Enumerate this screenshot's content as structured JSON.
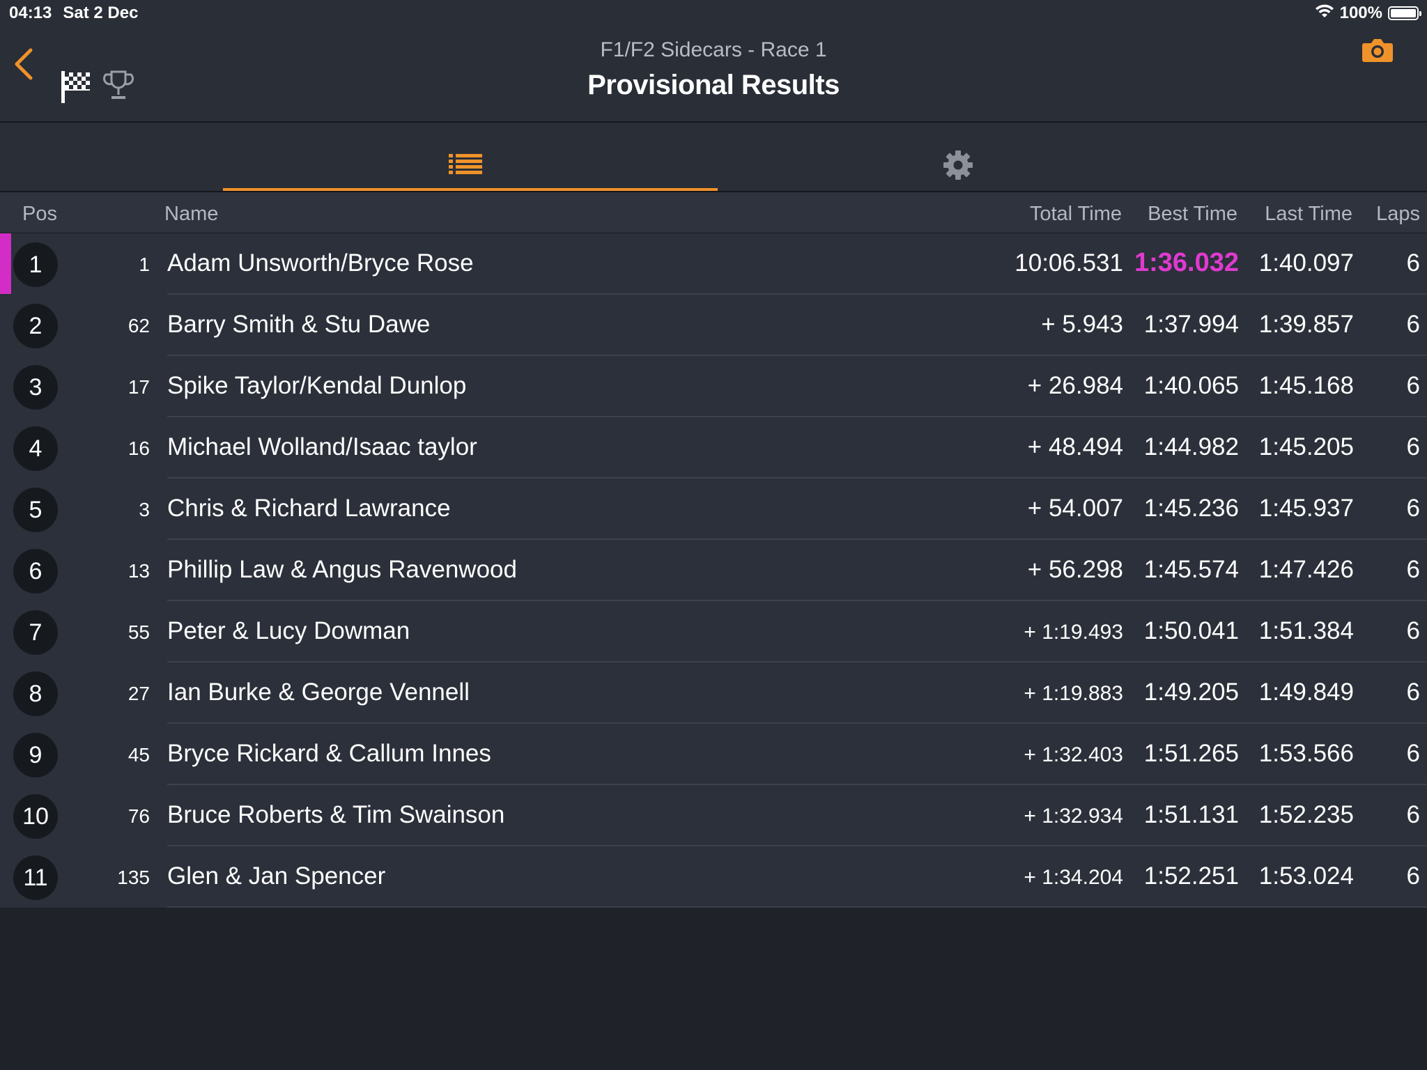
{
  "status_bar": {
    "time": "04:13",
    "date": "Sat 2 Dec",
    "battery": "100%"
  },
  "header": {
    "subtitle": "F1/F2 Sidecars - Race 1",
    "title": "Provisional Results"
  },
  "colors": {
    "accent": "#f0922a",
    "fastest_lap": "#e03ad0",
    "background": "#1f2229",
    "row": "#2b303a"
  },
  "icons": {
    "back": "chevron-left-icon",
    "flag": "checkered-flag-icon",
    "trophy": "trophy-icon",
    "camera": "camera-icon",
    "list_tab": "list-icon",
    "settings_tab": "gear-icon"
  },
  "columns": {
    "pos": "Pos",
    "name": "Name",
    "total": "Total Time",
    "best": "Best Time",
    "last": "Last Time",
    "laps": "Laps"
  },
  "results": [
    {
      "pos": "1",
      "num": "1",
      "name": "Adam Unsworth/Bryce Rose",
      "total": "10:06.531",
      "best": "1:36.032",
      "last": "1:40.097",
      "laps": "6"
    },
    {
      "pos": "2",
      "num": "62",
      "name": "Barry Smith & Stu Dawe",
      "total": "+ 5.943",
      "best": "1:37.994",
      "last": "1:39.857",
      "laps": "6"
    },
    {
      "pos": "3",
      "num": "17",
      "name": "Spike Taylor/Kendal Dunlop",
      "total": "+ 26.984",
      "best": "1:40.065",
      "last": "1:45.168",
      "laps": "6"
    },
    {
      "pos": "4",
      "num": "16",
      "name": "Michael Wolland/Isaac taylor",
      "total": "+ 48.494",
      "best": "1:44.982",
      "last": "1:45.205",
      "laps": "6"
    },
    {
      "pos": "5",
      "num": "3",
      "name": "Chris & Richard Lawrance",
      "total": "+ 54.007",
      "best": "1:45.236",
      "last": "1:45.937",
      "laps": "6"
    },
    {
      "pos": "6",
      "num": "13",
      "name": "Phillip Law & Angus Ravenwood",
      "total": "+ 56.298",
      "best": "1:45.574",
      "last": "1:47.426",
      "laps": "6"
    },
    {
      "pos": "7",
      "num": "55",
      "name": "Peter & Lucy Dowman",
      "total": "+ 1:19.493",
      "best": "1:50.041",
      "last": "1:51.384",
      "laps": "6"
    },
    {
      "pos": "8",
      "num": "27",
      "name": "Ian Burke & George Vennell",
      "total": "+ 1:19.883",
      "best": "1:49.205",
      "last": "1:49.849",
      "laps": "6"
    },
    {
      "pos": "9",
      "num": "45",
      "name": "Bryce Rickard & Callum Innes",
      "total": "+ 1:32.403",
      "best": "1:51.265",
      "last": "1:53.566",
      "laps": "6"
    },
    {
      "pos": "10",
      "num": "76",
      "name": "Bruce Roberts & Tim Swainson",
      "total": "+ 1:32.934",
      "best": "1:51.131",
      "last": "1:52.235",
      "laps": "6"
    },
    {
      "pos": "11",
      "num": "135",
      "name": "Glen & Jan Spencer",
      "total": "+ 1:34.204",
      "best": "1:52.251",
      "last": "1:53.024",
      "laps": "6"
    }
  ]
}
